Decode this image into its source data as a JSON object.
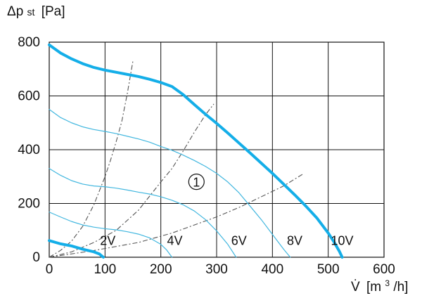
{
  "chart_data": {
    "type": "line",
    "ylabel": {
      "base": "Δp",
      "subscript": "st",
      "unit": "[Pa]"
    },
    "xlabel": {
      "base": "V̇",
      "unit_prefix": "[m",
      "unit_superscript": "3",
      "unit_suffix": "/h]"
    },
    "xlim": [
      0,
      600
    ],
    "ylim": [
      0,
      800
    ],
    "x_ticks": [
      0,
      100,
      200,
      300,
      400,
      500,
      600
    ],
    "y_ticks": [
      0,
      200,
      400,
      600,
      800
    ],
    "grid": true,
    "colors": {
      "main_curve": "#14aee8",
      "voltage_curve": "#42b7df",
      "dashed": "#555555",
      "grid": "#111111"
    },
    "series": [
      {
        "name": "2V",
        "role": "voltage",
        "x": [
          0,
          20,
          40,
          60,
          80,
          90,
          97
        ],
        "y": [
          62,
          50,
          42,
          30,
          20,
          12,
          0
        ]
      },
      {
        "name": "4V",
        "role": "voltage",
        "x": [
          0,
          20,
          40,
          60,
          80,
          100,
          120,
          140,
          160,
          180,
          200,
          210,
          220
        ],
        "y": [
          168,
          150,
          133,
          120,
          112,
          106,
          102,
          95,
          86,
          72,
          48,
          28,
          0
        ]
      },
      {
        "name": "6V",
        "role": "voltage",
        "x": [
          0,
          20,
          40,
          60,
          80,
          100,
          120,
          140,
          160,
          180,
          200,
          220,
          240,
          260,
          280,
          300,
          320,
          335
        ],
        "y": [
          330,
          305,
          285,
          272,
          265,
          262,
          257,
          250,
          242,
          235,
          225,
          212,
          195,
          172,
          140,
          98,
          48,
          0
        ]
      },
      {
        "name": "8V",
        "role": "voltage",
        "x": [
          0,
          20,
          40,
          60,
          80,
          100,
          120,
          140,
          160,
          180,
          200,
          220,
          240,
          260,
          280,
          300,
          320,
          340,
          360,
          380,
          400,
          420,
          432
        ],
        "y": [
          550,
          520,
          500,
          485,
          475,
          468,
          460,
          450,
          440,
          428,
          412,
          398,
          380,
          360,
          338,
          312,
          280,
          240,
          190,
          140,
          85,
          30,
          0
        ]
      },
      {
        "name": "10V",
        "role": "main",
        "x": [
          0,
          20,
          40,
          60,
          80,
          100,
          120,
          140,
          160,
          180,
          200,
          220,
          240,
          260,
          280,
          300,
          320,
          340,
          360,
          380,
          400,
          420,
          440,
          460,
          480,
          500,
          510,
          520,
          525
        ],
        "y": [
          790,
          760,
          738,
          720,
          706,
          696,
          688,
          680,
          672,
          662,
          650,
          635,
          605,
          568,
          532,
          498,
          462,
          425,
          388,
          350,
          312,
          272,
          232,
          190,
          145,
          90,
          58,
          22,
          0
        ]
      }
    ],
    "dashed_curves": [
      {
        "x": [
          0,
          20,
          40,
          60,
          80,
          100,
          110,
          120,
          130,
          140,
          150
        ],
        "y": [
          0,
          25,
          60,
          115,
          195,
          300,
          362,
          430,
          505,
          610,
          730
        ]
      },
      {
        "x": [
          0,
          40,
          80,
          120,
          160,
          200,
          220,
          240,
          260,
          280,
          295
        ],
        "y": [
          0,
          20,
          55,
          100,
          175,
          280,
          330,
          395,
          465,
          530,
          570
        ]
      },
      {
        "x": [
          0,
          80,
          160,
          220,
          260,
          300,
          340,
          380,
          420,
          455
        ],
        "y": [
          0,
          25,
          55,
          90,
          120,
          150,
          185,
          225,
          265,
          310
        ]
      }
    ],
    "annotations": [
      {
        "text": "2V",
        "x": 105,
        "y": 46
      },
      {
        "text": "4V",
        "x": 225,
        "y": 46
      },
      {
        "text": "6V",
        "x": 340,
        "y": 46
      },
      {
        "text": "8V",
        "x": 440,
        "y": 46
      },
      {
        "text": "10V",
        "x": 525,
        "y": 46
      },
      {
        "text": "1",
        "x": 255,
        "y": 265,
        "style": "circled"
      }
    ]
  }
}
